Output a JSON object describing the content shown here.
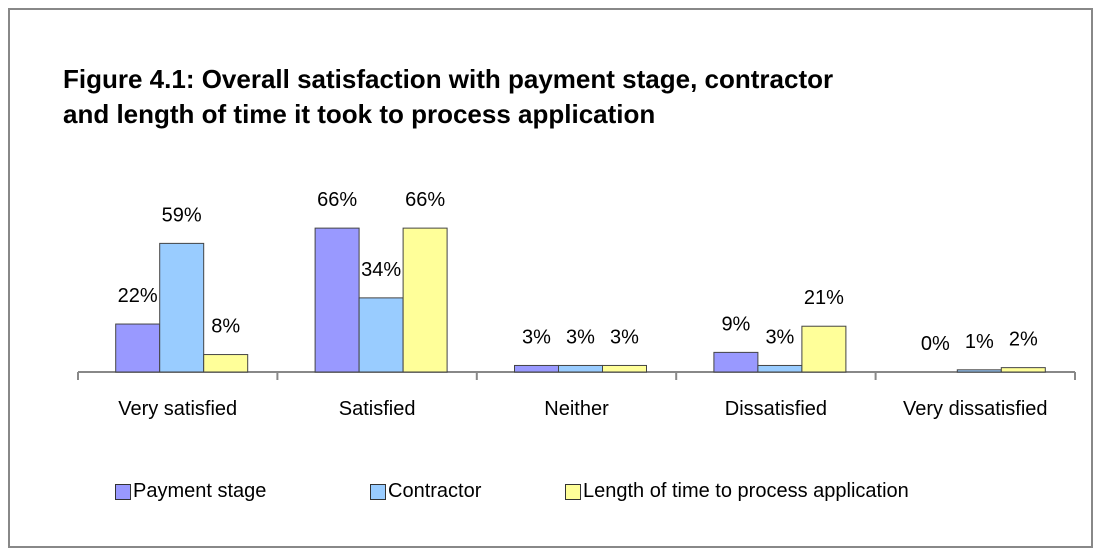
{
  "chart_data": {
    "type": "bar",
    "title": "Figure 4.1: Overall satisfaction with payment stage, contractor and length of time it took to process application",
    "categories": [
      "Very satisfied",
      "Satisfied",
      "Neither",
      "Dissatisfied",
      "Very dissatisfied"
    ],
    "series": [
      {
        "name": "Payment stage",
        "color": "#9999ff",
        "values": [
          22,
          66,
          3,
          9,
          0
        ],
        "value_labels": [
          "22%",
          "66%",
          "3%",
          "9%",
          "0%"
        ]
      },
      {
        "name": "Contractor",
        "color": "#99ccff",
        "values": [
          59,
          34,
          3,
          3,
          1
        ],
        "value_labels": [
          "59%",
          "34%",
          "3%",
          "3%",
          "1%"
        ]
      },
      {
        "name": "Length of time to process application",
        "color": "#ffff99",
        "values": [
          8,
          66,
          3,
          21,
          2
        ],
        "value_labels": [
          "8%",
          "66%",
          "3%",
          "21%",
          "2%"
        ]
      }
    ]
  }
}
